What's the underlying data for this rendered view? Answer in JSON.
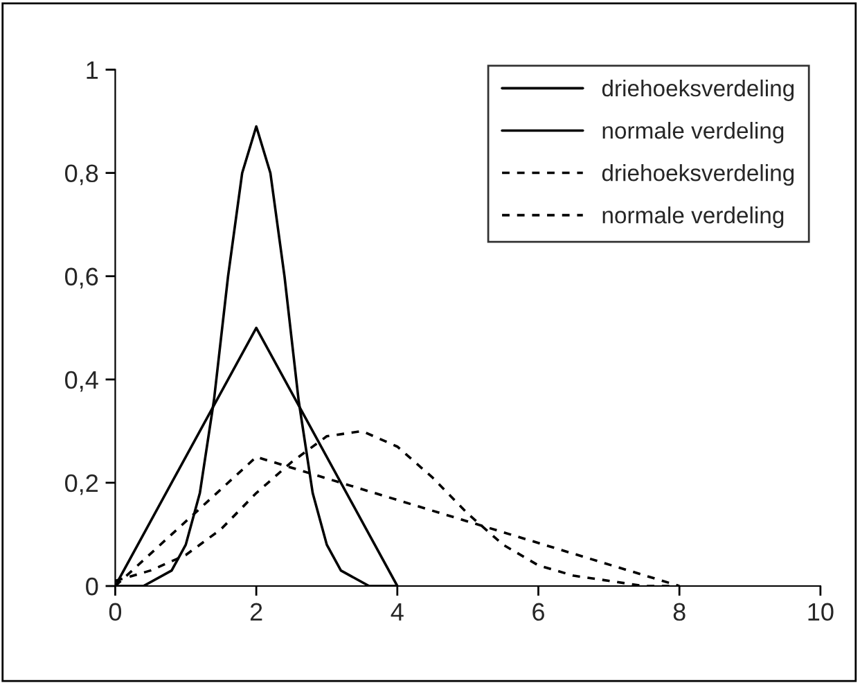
{
  "chart_data": {
    "type": "line",
    "grid": false,
    "legend": "top right",
    "marker": "none",
    "xlim": [
      0,
      10
    ],
    "xticks": [
      0,
      2,
      4,
      6,
      8,
      10
    ],
    "ylim": [
      0,
      1
    ],
    "yticks": [
      0,
      {
        "value": 0.2,
        "label": "0,2"
      },
      {
        "value": 0.4,
        "label": "0,4"
      },
      {
        "value": 0.6,
        "label": "0,6"
      },
      {
        "value": 0.8,
        "label": "0,8"
      },
      1
    ],
    "series": [
      {
        "name": "driehoeksverdeling",
        "color": "#000000",
        "line_style": "solid",
        "x": [
          0,
          2,
          4
        ],
        "values": [
          0,
          0.5,
          0
        ]
      },
      {
        "name": "normale verdeling",
        "color": "#000000",
        "line_style": "solid",
        "x": [
          0,
          0.4,
          0.8,
          1.0,
          1.2,
          1.4,
          1.6,
          1.8,
          2.0,
          2.2,
          2.4,
          2.6,
          2.8,
          3.0,
          3.2,
          3.6,
          4.0
        ],
        "values": [
          0,
          0,
          0.03,
          0.08,
          0.18,
          0.36,
          0.6,
          0.8,
          0.89,
          0.8,
          0.6,
          0.36,
          0.18,
          0.08,
          0.03,
          0,
          0
        ]
      },
      {
        "name": "driehoeksverdeling",
        "color": "#000000",
        "line_style": "dashed",
        "x": [
          0,
          2,
          8
        ],
        "values": [
          0,
          0.25,
          0
        ]
      },
      {
        "name": "normale verdeling",
        "color": "#000000",
        "line_style": "dashed",
        "x": [
          0,
          0.5,
          1,
          1.5,
          2,
          2.5,
          3,
          3.5,
          4,
          4.5,
          5,
          5.5,
          6,
          6.5,
          7,
          7.5,
          8
        ],
        "values": [
          0.01,
          0.03,
          0.06,
          0.11,
          0.18,
          0.24,
          0.29,
          0.3,
          0.27,
          0.21,
          0.14,
          0.08,
          0.04,
          0.02,
          0.01,
          0,
          0
        ]
      }
    ]
  }
}
